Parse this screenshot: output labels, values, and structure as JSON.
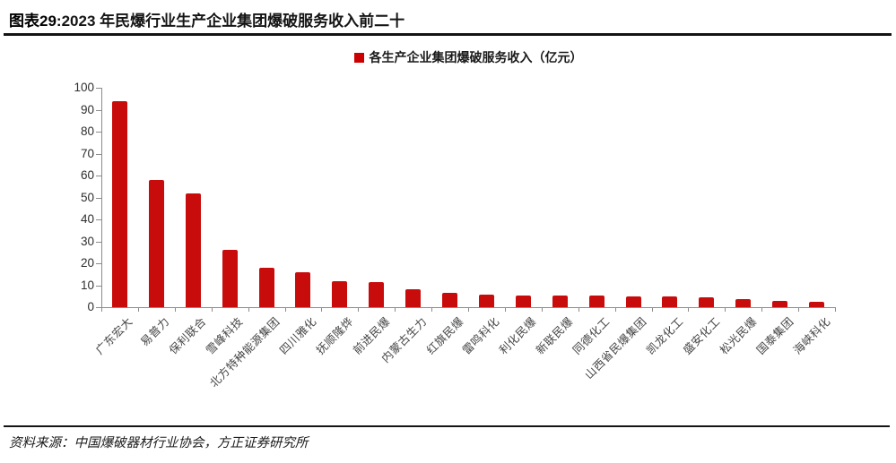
{
  "header": {
    "figure_label": "图表29:",
    "title": "2023 年民爆行业生产企业集团爆破服务收入前二十"
  },
  "legend": {
    "marker_color": "#cc0000",
    "label": "各生产企业集团爆破服务收入（亿元）"
  },
  "chart_data": {
    "type": "bar",
    "title": "2023 年民爆行业生产企业集团爆破服务收入前二十",
    "legend_entries": [
      "各生产企业集团爆破服务收入（亿元）"
    ],
    "legend_position": "top-center",
    "grid": false,
    "bar_color": "#c80c0c",
    "categories": [
      "广东宏大",
      "易普力",
      "保利联合",
      "雪峰科技",
      "北方特种能源集团",
      "四川雅化",
      "抚顺隆烨",
      "前进民爆",
      "内蒙古生力",
      "红旗民爆",
      "雷鸣科化",
      "利化民爆",
      "新联民爆",
      "同德化工",
      "山西省民爆集团",
      "凯龙化工",
      "盛安化工",
      "松光民爆",
      "国泰集团",
      "海峡科化"
    ],
    "values": [
      94,
      58,
      52,
      26,
      18,
      16,
      12,
      11.5,
      8.3,
      6.5,
      5.6,
      5.5,
      5.3,
      5.2,
      5.0,
      4.9,
      4.5,
      3.8,
      3.0,
      2.6
    ],
    "xlabel": "",
    "ylabel": "",
    "ylim": [
      0,
      100
    ],
    "ytick_step": 10
  },
  "footer": {
    "source": "资料来源：中国爆破器材行业协会，方正证券研究所"
  }
}
